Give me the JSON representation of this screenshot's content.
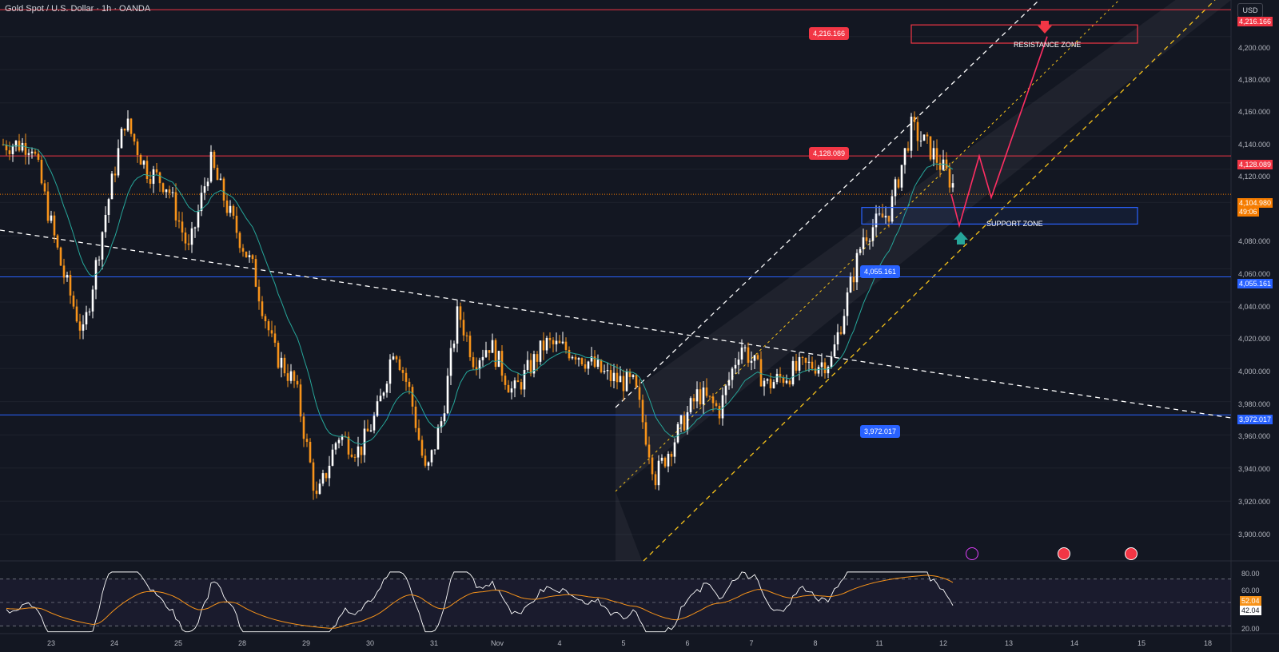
{
  "title": "Gold Spot / U.S. Dollar · 1h · OANDA",
  "currency_button": "USD",
  "colors": {
    "background": "#131722",
    "bull_candle": "#ffffff",
    "bear_candle": "#f7931a",
    "ma": "#26a69a",
    "resistance_line": "#f23645",
    "support_line": "#2962ff",
    "last_price": "#f57c00",
    "rsi": "#ffffff",
    "rsi_ma": "#f7931a"
  },
  "price_axis": {
    "ticks": [
      "4,200.000",
      "4,180.000",
      "4,160.000",
      "4,140.000",
      "4,120.000",
      "4,080.000",
      "4,060.000",
      "4,040.000",
      "4,020.000",
      "4,000.000",
      "3,980.000",
      "3,960.000",
      "3,940.000",
      "3,920.000",
      "3,900.000"
    ]
  },
  "price_tags": {
    "top": "4,216.166",
    "resistance": "4,128.089",
    "last": "4,104.980",
    "countdown": "49:06",
    "support": "4,055.161",
    "bottom": "3,972.017"
  },
  "chart_tags": {
    "top": "4,216.166",
    "resistance": "4,128.089",
    "support": "4,055.161",
    "bottom": "3,972.017"
  },
  "zones": {
    "resistance_label": "RESISTANCE ZONE",
    "support_label": "SUPPORT ZONE"
  },
  "rsi_axis": {
    "ticks": [
      "80.00",
      "60.00",
      "20.00"
    ],
    "ma_value": "52.04",
    "rsi_value": "42.04"
  },
  "x_axis": {
    "labels": [
      "23",
      "24",
      "25",
      "28",
      "29",
      "30",
      "31",
      "Nov",
      "4",
      "5",
      "6",
      "7",
      "8",
      "11",
      "12",
      "13",
      "14",
      "15",
      "18"
    ]
  },
  "chart_data": {
    "type": "candlestick",
    "title": "Gold Spot / U.S. Dollar · 1h · OANDA",
    "currency": "USD",
    "x_categories": [
      "23",
      "24",
      "25",
      "28",
      "29",
      "30",
      "31",
      "Nov",
      "4",
      "5",
      "6",
      "7",
      "8",
      "11",
      "12",
      "13",
      "14",
      "15",
      "18"
    ],
    "ylim": [
      3885,
      4222
    ],
    "horizontal_levels": [
      {
        "value": 4216.166,
        "color": "red"
      },
      {
        "value": 4128.089,
        "color": "red"
      },
      {
        "value": 4055.161,
        "color": "blue"
      },
      {
        "value": 3972.017,
        "color": "blue"
      }
    ],
    "last_price": 4104.98,
    "close_path": [
      {
        "x": "22",
        "y": 4135
      },
      {
        "x": "23",
        "y": 4060
      },
      {
        "x": "23",
        "y": 4020
      },
      {
        "x": "23",
        "y": 4090
      },
      {
        "x": "24",
        "y": 4150
      },
      {
        "x": "24",
        "y": 4120
      },
      {
        "x": "24",
        "y": 4110
      },
      {
        "x": "25",
        "y": 4070
      },
      {
        "x": "25",
        "y": 4125
      },
      {
        "x": "25",
        "y": 4090
      },
      {
        "x": "28",
        "y": 4060
      },
      {
        "x": "28",
        "y": 4010
      },
      {
        "x": "28",
        "y": 3990
      },
      {
        "x": "29",
        "y": 3920
      },
      {
        "x": "29",
        "y": 3960
      },
      {
        "x": "29",
        "y": 3950
      },
      {
        "x": "30",
        "y": 3975
      },
      {
        "x": "30",
        "y": 4015
      },
      {
        "x": "30",
        "y": 3985
      },
      {
        "x": "30",
        "y": 3935
      },
      {
        "x": "31",
        "y": 3970
      },
      {
        "x": "31",
        "y": 4035
      },
      {
        "x": "31",
        "y": 4005
      },
      {
        "x": "31",
        "y": 4015
      },
      {
        "x": "Nov",
        "y": 3985
      },
      {
        "x": "Nov",
        "y": 4015
      },
      {
        "x": "4",
        "y": 4010
      },
      {
        "x": "4",
        "y": 3995
      },
      {
        "x": "5",
        "y": 3990
      },
      {
        "x": "5",
        "y": 3935
      },
      {
        "x": "5",
        "y": 3960
      },
      {
        "x": "6",
        "y": 3985
      },
      {
        "x": "6",
        "y": 3975
      },
      {
        "x": "6",
        "y": 4015
      },
      {
        "x": "7",
        "y": 3990
      },
      {
        "x": "7",
        "y": 4000
      },
      {
        "x": "8",
        "y": 4005
      },
      {
        "x": "8",
        "y": 4080
      },
      {
        "x": "11",
        "y": 4095
      },
      {
        "x": "11",
        "y": 4145
      },
      {
        "x": "11",
        "y": 4130
      },
      {
        "x": "12",
        "y": 4110
      },
      {
        "x": "12",
        "y": 4140
      },
      {
        "x": "12",
        "y": 4104.98
      }
    ],
    "zones": [
      {
        "label": "RESISTANCE ZONE",
        "low": 4196,
        "high": 4207
      },
      {
        "label": "SUPPORT ZONE",
        "low": 4087,
        "high": 4097
      }
    ],
    "rsi": {
      "ylim": [
        20,
        80
      ],
      "ticks": [
        80,
        60,
        20
      ],
      "last_rsi": 42.04,
      "last_rsi_ma": 52.04
    }
  }
}
